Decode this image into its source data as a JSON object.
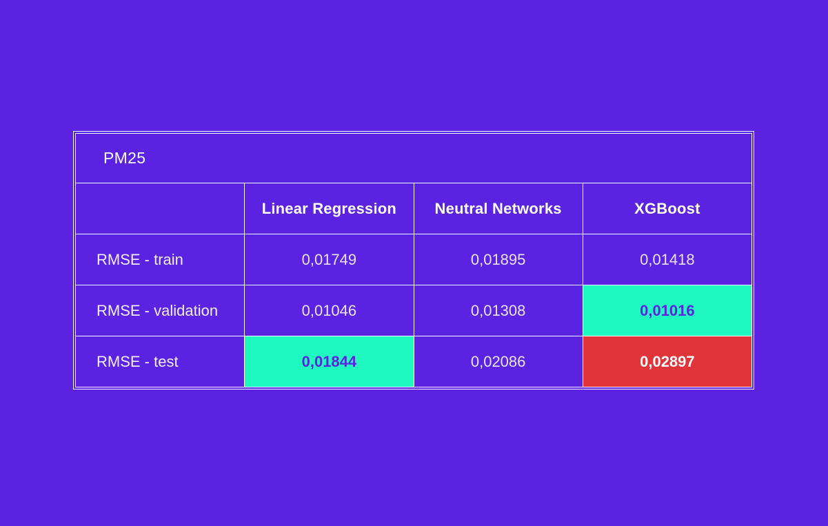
{
  "colors": {
    "background": "#5B23E1",
    "cell_background": "#5B23E1",
    "grid_border": "#FFFFFF",
    "highlight_green": "#1FF8BE",
    "highlight_red": "#E13438",
    "text_white": "#FFFFFF",
    "text_values": "#E9E5F8",
    "text_on_green": "#5B23E1"
  },
  "table": {
    "title": "PM25",
    "columns": [
      "",
      "Linear Regression",
      "Neutral Networks",
      "XGBoost"
    ],
    "rows": [
      {
        "label": "RMSE - train",
        "values": [
          {
            "text": "0,01749",
            "highlight": "none"
          },
          {
            "text": "0,01895",
            "highlight": "none"
          },
          {
            "text": "0,01418",
            "highlight": "none"
          }
        ]
      },
      {
        "label": "RMSE - validation",
        "values": [
          {
            "text": "0,01046",
            "highlight": "none"
          },
          {
            "text": "0,01308",
            "highlight": "none"
          },
          {
            "text": "0,01016",
            "highlight": "green"
          }
        ]
      },
      {
        "label": "RMSE - test",
        "values": [
          {
            "text": "0,01844",
            "highlight": "green"
          },
          {
            "text": "0,02086",
            "highlight": "none"
          },
          {
            "text": "0,02897",
            "highlight": "red"
          }
        ]
      }
    ]
  },
  "chart_data": {
    "type": "table",
    "title": "PM25",
    "columns": [
      "",
      "Linear Regression",
      "Neutral Networks",
      "XGBoost"
    ],
    "row_labels": [
      "RMSE - train",
      "RMSE - validation",
      "RMSE - test"
    ],
    "series": [
      {
        "name": "Linear Regression",
        "values": [
          0.01749,
          0.01046,
          0.01844
        ]
      },
      {
        "name": "Neutral Networks",
        "values": [
          0.01895,
          0.01308,
          0.02086
        ]
      },
      {
        "name": "XGBoost",
        "values": [
          0.01418,
          0.01016,
          0.02897
        ]
      }
    ],
    "decimal_separator": ",",
    "highlights": [
      {
        "row": "RMSE - validation",
        "column": "XGBoost",
        "color": "green"
      },
      {
        "row": "RMSE - test",
        "column": "Linear Regression",
        "color": "green"
      },
      {
        "row": "RMSE - test",
        "column": "XGBoost",
        "color": "red"
      }
    ],
    "legend_position": "none",
    "grid": true
  }
}
